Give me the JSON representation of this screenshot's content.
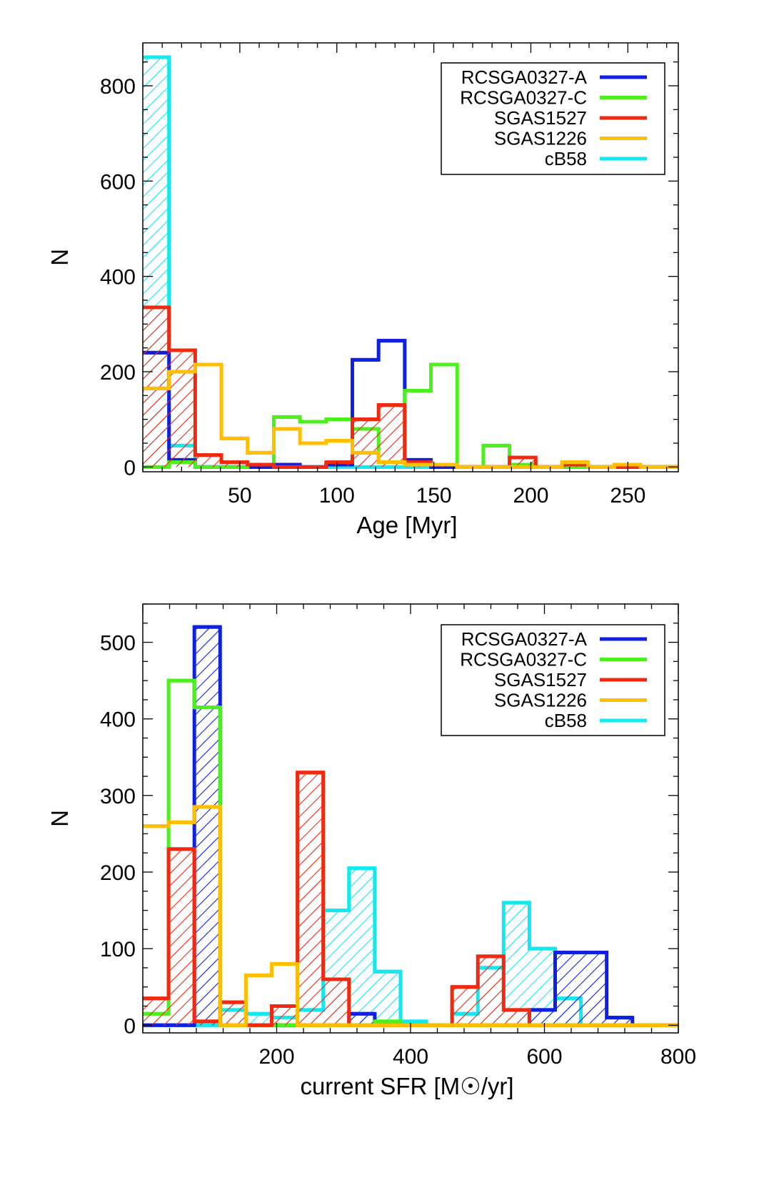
{
  "colors": {
    "RCSGA0327-A": "#1020e0",
    "RCSGA0327-C": "#4cf01c",
    "SGAS1527": "#f02a10",
    "SGAS1226": "#ffbf00",
    "cB58": "#12e8f0"
  },
  "chart_data": [
    {
      "type": "histogram",
      "title": "",
      "xlabel": "Age [Myr]",
      "ylabel": "N",
      "xlim": [
        0,
        276
      ],
      "ylim": [
        -10,
        890
      ],
      "xticks": [
        50,
        100,
        150,
        200,
        250
      ],
      "yticks": [
        0,
        200,
        400,
        600,
        800
      ],
      "legend": {
        "position": "top-right",
        "entries": [
          "RCSGA0327-A",
          "RCSGA0327-C",
          "SGAS1527",
          "SGAS1226",
          "cB58"
        ]
      },
      "bin_edges": [
        0,
        13.5,
        27,
        40.5,
        54,
        67.5,
        81,
        94.5,
        108,
        121.5,
        135,
        148.5,
        162,
        175.5,
        189,
        202.5,
        216,
        229.5,
        243,
        256.5,
        270,
        276
      ],
      "series": [
        {
          "name": "RCSGA0327-A",
          "hatched": false,
          "values": [
            240,
            15,
            0,
            0,
            0,
            5,
            0,
            5,
            225,
            265,
            15,
            0,
            0,
            0,
            0,
            0,
            0,
            0,
            0,
            0,
            0
          ]
        },
        {
          "name": "RCSGA0327-C",
          "hatched": false,
          "values": [
            0,
            10,
            0,
            0,
            5,
            105,
            95,
            100,
            80,
            10,
            160,
            215,
            0,
            45,
            5,
            0,
            0,
            0,
            0,
            0,
            0
          ]
        },
        {
          "name": "SGAS1527",
          "hatched": true,
          "values": [
            335,
            245,
            25,
            10,
            5,
            0,
            0,
            10,
            100,
            130,
            10,
            5,
            0,
            0,
            20,
            0,
            5,
            0,
            0,
            0,
            0
          ]
        },
        {
          "name": "SGAS1226",
          "hatched": false,
          "values": [
            165,
            200,
            215,
            60,
            30,
            80,
            50,
            55,
            30,
            10,
            5,
            5,
            0,
            0,
            0,
            0,
            10,
            0,
            5,
            0,
            0
          ]
        },
        {
          "name": "cB58",
          "hatched": true,
          "values": [
            860,
            45,
            0,
            0,
            0,
            0,
            0,
            0,
            0,
            0,
            0,
            0,
            0,
            0,
            0,
            0,
            0,
            0,
            0,
            0,
            0
          ]
        }
      ]
    },
    {
      "type": "histogram",
      "title": "",
      "xlabel": "current SFR [M☉/yr]",
      "ylabel": "N",
      "xlim": [
        0,
        800
      ],
      "ylim": [
        -10,
        550
      ],
      "xticks": [
        200,
        400,
        600,
        800
      ],
      "yticks": [
        0,
        100,
        200,
        300,
        400,
        500
      ],
      "legend": {
        "position": "top-right",
        "entries": [
          "RCSGA0327-A",
          "RCSGA0327-C",
          "SGAS1527",
          "SGAS1226",
          "cB58"
        ]
      },
      "bin_edges": [
        0,
        38.5,
        77,
        115.5,
        154,
        192.5,
        231,
        269.5,
        308,
        346.5,
        385,
        423.5,
        462,
        500.5,
        539,
        577.5,
        616,
        654.5,
        693,
        731.5,
        770,
        800
      ],
      "series": [
        {
          "name": "RCSGA0327-A",
          "hatched": true,
          "values": [
            0,
            0,
            520,
            0,
            0,
            0,
            0,
            0,
            15,
            0,
            0,
            0,
            0,
            0,
            0,
            20,
            95,
            95,
            10,
            0,
            0
          ]
        },
        {
          "name": "RCSGA0327-C",
          "hatched": false,
          "values": [
            15,
            450,
            415,
            0,
            0,
            0,
            0,
            0,
            0,
            5,
            0,
            0,
            0,
            0,
            0,
            0,
            0,
            0,
            0,
            0,
            0
          ]
        },
        {
          "name": "SGAS1527",
          "hatched": true,
          "values": [
            35,
            230,
            5,
            30,
            0,
            25,
            330,
            60,
            0,
            0,
            0,
            0,
            50,
            90,
            20,
            0,
            0,
            0,
            0,
            0,
            0
          ]
        },
        {
          "name": "SGAS1226",
          "hatched": false,
          "values": [
            260,
            265,
            285,
            0,
            65,
            80,
            0,
            0,
            0,
            0,
            0,
            0,
            0,
            0,
            0,
            0,
            0,
            0,
            0,
            0,
            0
          ]
        },
        {
          "name": "cB58",
          "hatched": true,
          "values": [
            0,
            0,
            0,
            20,
            15,
            10,
            20,
            150,
            205,
            70,
            5,
            0,
            15,
            75,
            160,
            100,
            35,
            0,
            0,
            0,
            0
          ]
        }
      ]
    }
  ]
}
